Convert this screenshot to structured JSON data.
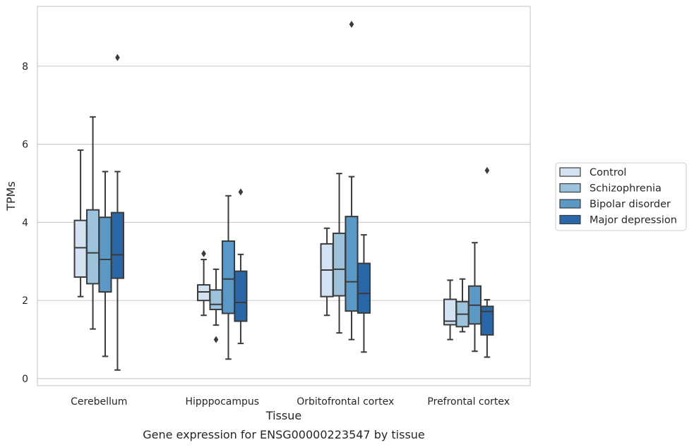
{
  "chart_data": {
    "type": "box",
    "title": "",
    "caption": "Gene expression for ENSG00000223547 by tissue",
    "xlabel": "Tissue",
    "ylabel": "TPMs",
    "ylim": [
      -0.2,
      9.5
    ],
    "yticks": [
      0,
      2,
      4,
      6,
      8
    ],
    "grid": "horizontal",
    "legend_position": "right",
    "categories": [
      "Cerebellum",
      "Hipppocampus",
      "Orbitofrontal cortex",
      "Prefrontal cortex"
    ],
    "series": [
      {
        "name": "Control",
        "color": "#d4e3f3",
        "boxes": [
          {
            "whislo": 2.1,
            "q1": 2.6,
            "med": 3.35,
            "q3": 4.05,
            "whishi": 5.85,
            "fliers": []
          },
          {
            "whislo": 1.62,
            "q1": 2.0,
            "med": 2.22,
            "q3": 2.4,
            "whishi": 3.05,
            "fliers": [
              3.2
            ]
          },
          {
            "whislo": 1.62,
            "q1": 2.1,
            "med": 2.78,
            "q3": 3.45,
            "whishi": 3.85,
            "fliers": []
          },
          {
            "whislo": 1.0,
            "q1": 1.38,
            "med": 1.47,
            "q3": 2.03,
            "whishi": 2.52,
            "fliers": []
          }
        ]
      },
      {
        "name": "Schizophrenia",
        "color": "#9cc2dc",
        "boxes": [
          {
            "whislo": 1.27,
            "q1": 2.43,
            "med": 3.22,
            "q3": 4.32,
            "whishi": 6.7,
            "fliers": []
          },
          {
            "whislo": 1.37,
            "q1": 1.77,
            "med": 1.9,
            "q3": 2.27,
            "whishi": 2.8,
            "fliers": [
              1.0
            ]
          },
          {
            "whislo": 1.17,
            "q1": 2.12,
            "med": 2.8,
            "q3": 3.72,
            "whishi": 5.25,
            "fliers": []
          },
          {
            "whislo": 1.2,
            "q1": 1.33,
            "med": 1.65,
            "q3": 1.97,
            "whishi": 2.55,
            "fliers": []
          }
        ]
      },
      {
        "name": "Bipolar disorder",
        "color": "#5a98c6",
        "boxes": [
          {
            "whislo": 0.57,
            "q1": 2.22,
            "med": 3.05,
            "q3": 4.13,
            "whishi": 5.3,
            "fliers": []
          },
          {
            "whislo": 0.5,
            "q1": 1.67,
            "med": 2.55,
            "q3": 3.52,
            "whishi": 4.68,
            "fliers": []
          },
          {
            "whislo": 1.0,
            "q1": 1.73,
            "med": 2.48,
            "q3": 4.15,
            "whishi": 5.17,
            "fliers": [
              9.07
            ]
          },
          {
            "whislo": 0.7,
            "q1": 1.4,
            "med": 1.88,
            "q3": 2.37,
            "whishi": 3.48,
            "fliers": []
          }
        ]
      },
      {
        "name": "Major depression",
        "color": "#2a67a8",
        "boxes": [
          {
            "whislo": 0.22,
            "q1": 2.57,
            "med": 3.17,
            "q3": 4.25,
            "whishi": 5.3,
            "fliers": [
              8.22
            ]
          },
          {
            "whislo": 0.9,
            "q1": 1.47,
            "med": 1.95,
            "q3": 2.75,
            "whishi": 3.18,
            "fliers": [
              4.78
            ]
          },
          {
            "whislo": 0.68,
            "q1": 1.68,
            "med": 2.18,
            "q3": 2.95,
            "whishi": 3.68,
            "fliers": []
          },
          {
            "whislo": 0.55,
            "q1": 1.12,
            "med": 1.72,
            "q3": 1.85,
            "whishi": 2.02,
            "fliers": [
              5.33
            ]
          }
        ]
      }
    ]
  }
}
